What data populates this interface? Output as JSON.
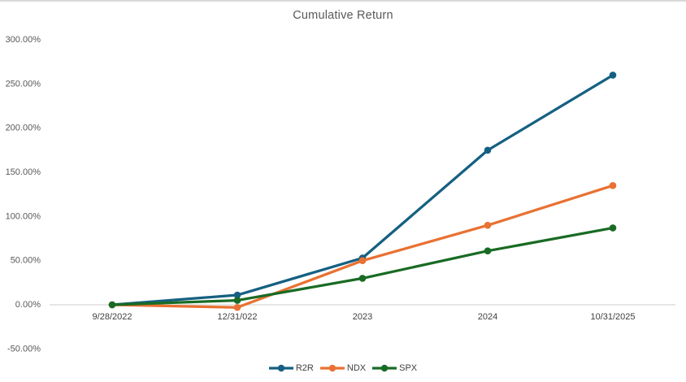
{
  "chart_data": {
    "type": "line",
    "title": "Cumulative Return",
    "categories": [
      "9/28/2022",
      "12/31/022",
      "2023",
      "2024",
      "10/31/2025"
    ],
    "series": [
      {
        "name": "R2R",
        "color": "#156082",
        "values": [
          0,
          11,
          53,
          175,
          260
        ]
      },
      {
        "name": "NDX",
        "color": "#E97132",
        "values": [
          0,
          -3,
          50,
          90,
          135
        ]
      },
      {
        "name": "SPX",
        "color": "#196B24",
        "values": [
          0,
          5,
          30,
          61,
          87
        ]
      }
    ],
    "y_axis": {
      "min": -50,
      "max": 300,
      "step": 50,
      "tick_labels": [
        "300.00%",
        "250.00%",
        "200.00%",
        "150.00%",
        "100.00%",
        "50.00%",
        "0.00%",
        "-50.00%"
      ],
      "unit": "percent"
    },
    "x_axis": {
      "labels": [
        "9/28/2022",
        "12/31/022",
        "2023",
        "2024",
        "10/31/2025"
      ]
    },
    "legend": {
      "position": "bottom",
      "entries": [
        "R2R",
        "NDX",
        "SPX"
      ]
    },
    "gridlines": "none",
    "zero_line": true,
    "marker": "circle"
  },
  "styles": {
    "background": "#FFFFFF",
    "top_border_color": "#D9D9D9",
    "title_color": "#595959",
    "y_tick_color": "#595959",
    "x_tick_color": "#404040",
    "legend_text_color": "#404040",
    "axis_line_color": "#D6D6D6"
  }
}
